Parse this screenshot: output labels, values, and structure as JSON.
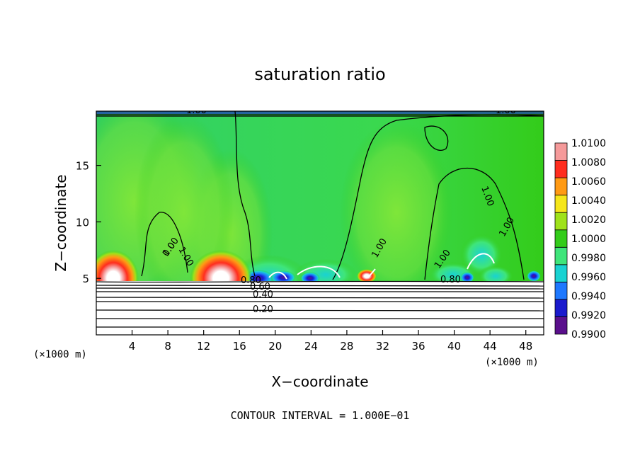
{
  "chart_data": {
    "type": "heatmap",
    "title": "saturation ratio",
    "xlabel": "X−coordinate",
    "ylabel": "Z−coordinate",
    "x_unit": "(×1000 m)",
    "z_unit": "(×1000 m)",
    "xlim": [
      0,
      50
    ],
    "ylim": [
      0,
      19.8
    ],
    "x_ticks": [
      4,
      8,
      12,
      16,
      20,
      24,
      28,
      32,
      36,
      40,
      44,
      48
    ],
    "x_tick_labels": [
      "4",
      "8",
      "12",
      "16",
      "20",
      "24",
      "28",
      "32",
      "36",
      "40",
      "44",
      "48"
    ],
    "y_ticks": [
      5,
      10,
      15
    ],
    "y_tick_labels": [
      "5",
      "10",
      "15"
    ],
    "colorbar": {
      "levels": [
        0.99,
        0.992,
        0.994,
        0.996,
        0.998,
        1.0,
        1.002,
        1.004,
        1.006,
        1.008,
        1.01
      ],
      "labels": [
        "0.9900",
        "0.9920",
        "0.9940",
        "0.9960",
        "0.9980",
        "1.0000",
        "1.0020",
        "1.0040",
        "1.0060",
        "1.0080",
        "1.0100"
      ],
      "colors": [
        "#5a0f8c",
        "#1a1acd",
        "#1e78ff",
        "#19d2d2",
        "#3fe57a",
        "#33cc1a",
        "#9fe21a",
        "#f5e61a",
        "#ff9a14",
        "#ff2d1e",
        "#f59a9a"
      ]
    },
    "contour_labels": [
      "1.00",
      "1.00",
      "1.00",
      "1.00",
      "1.00",
      "1.00",
      "1.00",
      "1.00",
      "0.80",
      "0.60",
      "0.40",
      "0.20",
      "0.80",
      "0.0"
    ],
    "contour_interval_text": "CONTOUR INTERVAL = 1.000E−01"
  },
  "colors": {
    "field_base": "#33cc1a",
    "field_dry": "#ffffff",
    "contour": "#000000"
  }
}
